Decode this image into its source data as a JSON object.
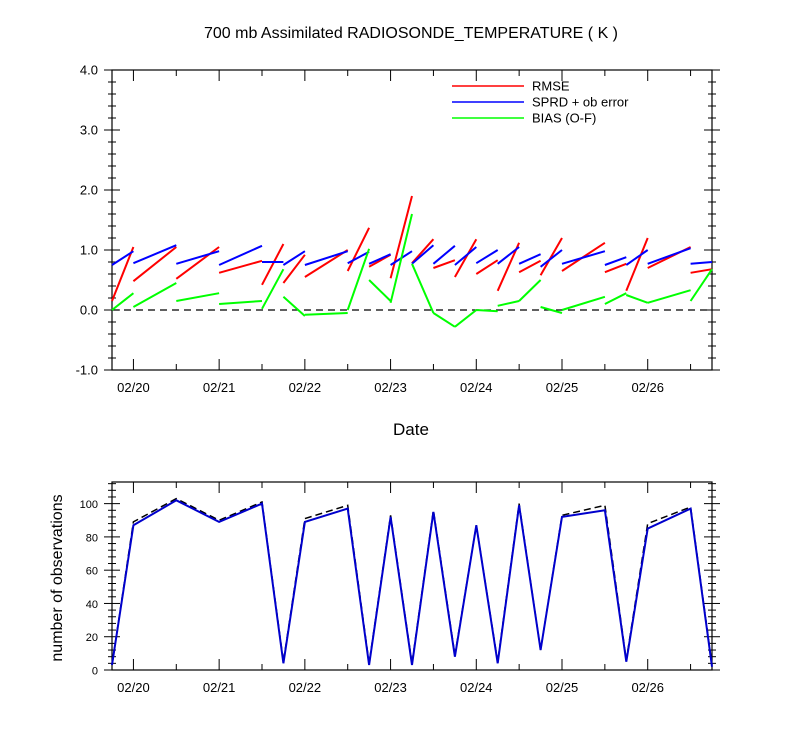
{
  "chart_data": [
    {
      "type": "line",
      "title": "700 mb Assimilated RADIOSONDE_TEMPERATURE ( K )",
      "xlabel": "Date",
      "ylabel": "",
      "ylim": [
        -1.0,
        4.0
      ],
      "yticks": [
        "-1.0",
        "0.0",
        "1.0",
        "2.0",
        "3.0",
        "4.0"
      ],
      "xlim": [
        "02/19 18Z",
        "02/26 18Z"
      ],
      "xtick_labels": [
        "02/20",
        "02/21",
        "02/22",
        "02/23",
        "02/24",
        "02/25",
        "02/26"
      ],
      "grid": false,
      "legend_position": "top-right",
      "zero_line": "dashed",
      "x": [
        "02/19 18Z",
        "02/20 00Z",
        "02/20 06Z",
        "02/20 12Z",
        "02/20 18Z",
        "02/21 00Z",
        "02/21 06Z",
        "02/21 12Z",
        "02/21 18Z",
        "02/22 00Z",
        "02/22 06Z",
        "02/22 12Z",
        "02/22 18Z",
        "02/23 00Z",
        "02/23 06Z",
        "02/23 12Z",
        "02/23 18Z",
        "02/24 00Z",
        "02/24 06Z",
        "02/24 12Z",
        "02/24 18Z",
        "02/25 00Z",
        "02/25 06Z",
        "02/25 12Z",
        "02/25 18Z",
        "02/26 00Z",
        "02/26 06Z",
        "02/26 12Z",
        "02/26 18Z"
      ],
      "series": [
        {
          "name": "RMSE",
          "color": "#ff0000",
          "segments": [
            [
              [
                "02/19 18Z",
                0.15
              ],
              [
                "02/20 00Z",
                1.05
              ]
            ],
            [
              [
                "02/20 00Z",
                0.48
              ],
              [
                "02/20 12Z",
                1.05
              ]
            ],
            [
              [
                "02/20 12Z",
                0.52
              ],
              [
                "02/21 00Z",
                1.05
              ]
            ],
            [
              [
                "02/21 00Z",
                0.62
              ],
              [
                "02/21 12Z",
                0.82
              ]
            ],
            [
              [
                "02/21 12Z",
                0.42
              ],
              [
                "02/21 18Z",
                1.1
              ]
            ],
            [
              [
                "02/21 18Z",
                0.45
              ],
              [
                "02/22 00Z",
                0.92
              ]
            ],
            [
              [
                "02/22 00Z",
                0.55
              ],
              [
                "02/22 12Z",
                1.0
              ]
            ],
            [
              [
                "02/22 12Z",
                0.65
              ],
              [
                "02/22 18Z",
                1.37
              ]
            ],
            [
              [
                "02/22 18Z",
                0.72
              ],
              [
                "02/23 00Z",
                0.92
              ]
            ],
            [
              [
                "02/23 00Z",
                0.53
              ],
              [
                "02/23 06Z",
                1.9
              ]
            ],
            [
              [
                "02/23 06Z",
                0.78
              ],
              [
                "02/23 12Z",
                1.18
              ]
            ],
            [
              [
                "02/23 12Z",
                0.7
              ],
              [
                "02/23 18Z",
                0.83
              ]
            ],
            [
              [
                "02/23 18Z",
                0.55
              ],
              [
                "02/24 00Z",
                1.18
              ]
            ],
            [
              [
                "02/24 00Z",
                0.6
              ],
              [
                "02/24 06Z",
                0.83
              ]
            ],
            [
              [
                "02/24 06Z",
                0.32
              ],
              [
                "02/24 12Z",
                1.12
              ]
            ],
            [
              [
                "02/24 12Z",
                0.63
              ],
              [
                "02/24 18Z",
                0.82
              ]
            ],
            [
              [
                "02/24 18Z",
                0.58
              ],
              [
                "02/25 00Z",
                1.2
              ]
            ],
            [
              [
                "02/25 00Z",
                0.65
              ],
              [
                "02/25 12Z",
                1.12
              ]
            ],
            [
              [
                "02/25 12Z",
                0.63
              ],
              [
                "02/25 18Z",
                0.77
              ]
            ],
            [
              [
                "02/25 18Z",
                0.32
              ],
              [
                "02/26 00Z",
                1.2
              ]
            ],
            [
              [
                "02/26 00Z",
                0.7
              ],
              [
                "02/26 12Z",
                1.05
              ]
            ],
            [
              [
                "02/26 12Z",
                0.62
              ],
              [
                "02/26 18Z",
                0.68
              ]
            ]
          ]
        },
        {
          "name": "SPRD + ob error",
          "color": "#0000ff",
          "segments": [
            [
              [
                "02/19 18Z",
                0.75
              ],
              [
                "02/20 00Z",
                0.98
              ]
            ],
            [
              [
                "02/20 00Z",
                0.78
              ],
              [
                "02/20 12Z",
                1.08
              ]
            ],
            [
              [
                "02/20 12Z",
                0.77
              ],
              [
                "02/21 00Z",
                0.98
              ]
            ],
            [
              [
                "02/21 00Z",
                0.75
              ],
              [
                "02/21 12Z",
                1.07
              ]
            ],
            [
              [
                "02/21 12Z",
                0.8
              ],
              [
                "02/21 18Z",
                0.8
              ]
            ],
            [
              [
                "02/21 18Z",
                0.75
              ],
              [
                "02/22 00Z",
                0.98
              ]
            ],
            [
              [
                "02/22 00Z",
                0.75
              ],
              [
                "02/22 12Z",
                0.98
              ]
            ],
            [
              [
                "02/22 12Z",
                0.78
              ],
              [
                "02/22 18Z",
                0.97
              ]
            ],
            [
              [
                "02/22 18Z",
                0.77
              ],
              [
                "02/23 00Z",
                0.93
              ]
            ],
            [
              [
                "02/23 00Z",
                0.75
              ],
              [
                "02/23 06Z",
                0.98
              ]
            ],
            [
              [
                "02/23 06Z",
                0.77
              ],
              [
                "02/23 12Z",
                1.08
              ]
            ],
            [
              [
                "02/23 12Z",
                0.77
              ],
              [
                "02/23 18Z",
                1.07
              ]
            ],
            [
              [
                "02/23 18Z",
                0.75
              ],
              [
                "02/24 00Z",
                1.05
              ]
            ],
            [
              [
                "02/24 00Z",
                0.78
              ],
              [
                "02/24 06Z",
                1.0
              ]
            ],
            [
              [
                "02/24 06Z",
                0.77
              ],
              [
                "02/24 12Z",
                1.05
              ]
            ],
            [
              [
                "02/24 12Z",
                0.77
              ],
              [
                "02/24 18Z",
                0.93
              ]
            ],
            [
              [
                "02/24 18Z",
                0.72
              ],
              [
                "02/25 00Z",
                1.0
              ]
            ],
            [
              [
                "02/25 00Z",
                0.77
              ],
              [
                "02/25 12Z",
                0.98
              ]
            ],
            [
              [
                "02/25 12Z",
                0.75
              ],
              [
                "02/25 18Z",
                0.88
              ]
            ],
            [
              [
                "02/25 18Z",
                0.75
              ],
              [
                "02/26 00Z",
                1.0
              ]
            ],
            [
              [
                "02/26 00Z",
                0.77
              ],
              [
                "02/26 12Z",
                1.03
              ]
            ],
            [
              [
                "02/26 12Z",
                0.77
              ],
              [
                "02/26 18Z",
                0.8
              ]
            ]
          ]
        },
        {
          "name": "BIAS (O-F)",
          "color": "#00ff00",
          "segments": [
            [
              [
                "02/19 18Z",
                0.0
              ],
              [
                "02/20 00Z",
                0.28
              ]
            ],
            [
              [
                "02/20 00Z",
                0.05
              ],
              [
                "02/20 12Z",
                0.45
              ]
            ],
            [
              [
                "02/20 12Z",
                0.15
              ],
              [
                "02/21 00Z",
                0.28
              ]
            ],
            [
              [
                "02/21 00Z",
                0.1
              ],
              [
                "02/21 12Z",
                0.15
              ]
            ],
            [
              [
                "02/21 12Z",
                0.02
              ],
              [
                "02/21 18Z",
                0.68
              ]
            ],
            [
              [
                "02/21 18Z",
                0.22
              ],
              [
                "02/22 00Z",
                -0.1
              ]
            ],
            [
              [
                "02/22 00Z",
                -0.08
              ],
              [
                "02/22 12Z",
                -0.05
              ]
            ],
            [
              [
                "02/22 12Z",
                0.0
              ],
              [
                "02/22 18Z",
                1.02
              ]
            ],
            [
              [
                "02/22 18Z",
                0.5
              ],
              [
                "02/23 00Z",
                0.15
              ]
            ],
            [
              [
                "02/23 00Z",
                0.12
              ],
              [
                "02/23 06Z",
                1.6
              ]
            ],
            [
              [
                "02/23 06Z",
                0.77
              ],
              [
                "02/23 12Z",
                -0.05
              ]
            ],
            [
              [
                "02/23 12Z",
                -0.05
              ],
              [
                "02/23 18Z",
                -0.28
              ]
            ],
            [
              [
                "02/23 18Z",
                -0.28
              ],
              [
                "02/24 00Z",
                0.0
              ]
            ],
            [
              [
                "02/24 00Z",
                0.0
              ],
              [
                "02/24 06Z",
                -0.02
              ]
            ],
            [
              [
                "02/24 06Z",
                0.07
              ],
              [
                "02/24 12Z",
                0.15
              ]
            ],
            [
              [
                "02/24 12Z",
                0.15
              ],
              [
                "02/24 18Z",
                0.5
              ]
            ],
            [
              [
                "02/24 18Z",
                0.05
              ],
              [
                "02/25 00Z",
                -0.05
              ]
            ],
            [
              [
                "02/25 00Z",
                0.0
              ],
              [
                "02/25 12Z",
                0.22
              ]
            ],
            [
              [
                "02/25 12Z",
                0.1
              ],
              [
                "02/25 18Z",
                0.28
              ]
            ],
            [
              [
                "02/25 18Z",
                0.25
              ],
              [
                "02/26 00Z",
                0.12
              ]
            ],
            [
              [
                "02/26 00Z",
                0.12
              ],
              [
                "02/26 12Z",
                0.33
              ]
            ],
            [
              [
                "02/26 12Z",
                0.15
              ],
              [
                "02/26 18Z",
                0.68
              ]
            ]
          ]
        }
      ]
    },
    {
      "type": "line",
      "title": "",
      "xlabel": "",
      "ylabel": "number of observations",
      "ylim": [
        0,
        113
      ],
      "yticks": [
        "0",
        "20",
        "40",
        "60",
        "80",
        "100"
      ],
      "xlim": [
        "02/19 18Z",
        "02/26 18Z"
      ],
      "xtick_labels": [
        "02/20",
        "02/21",
        "02/22",
        "02/23",
        "02/24",
        "02/25",
        "02/26"
      ],
      "grid": false,
      "x": [
        "02/19 18Z",
        "02/20 00Z",
        "02/20 12Z",
        "02/21 00Z",
        "02/21 12Z",
        "02/21 18Z",
        "02/22 00Z",
        "02/22 12Z",
        "02/22 18Z",
        "02/23 00Z",
        "02/23 06Z",
        "02/23 12Z",
        "02/23 18Z",
        "02/24 00Z",
        "02/24 06Z",
        "02/24 12Z",
        "02/24 18Z",
        "02/25 00Z",
        "02/25 12Z",
        "02/25 18Z",
        "02/26 00Z",
        "02/26 12Z",
        "02/26 18Z"
      ],
      "series": [
        {
          "style": "dashed",
          "color": "#000000",
          "values": [
            3,
            89,
            103,
            90,
            101,
            5,
            91,
            99,
            4,
            93,
            4,
            96,
            9,
            87,
            5,
            100,
            12,
            93,
            99,
            6,
            88,
            98,
            3
          ]
        },
        {
          "style": "solid",
          "color": "#0000cc",
          "values": [
            3,
            87,
            102,
            89,
            100,
            4,
            89,
            97,
            3,
            92,
            3,
            95,
            8,
            87,
            4,
            99,
            12,
            92,
            96,
            5,
            85,
            97,
            2
          ]
        }
      ]
    }
  ]
}
